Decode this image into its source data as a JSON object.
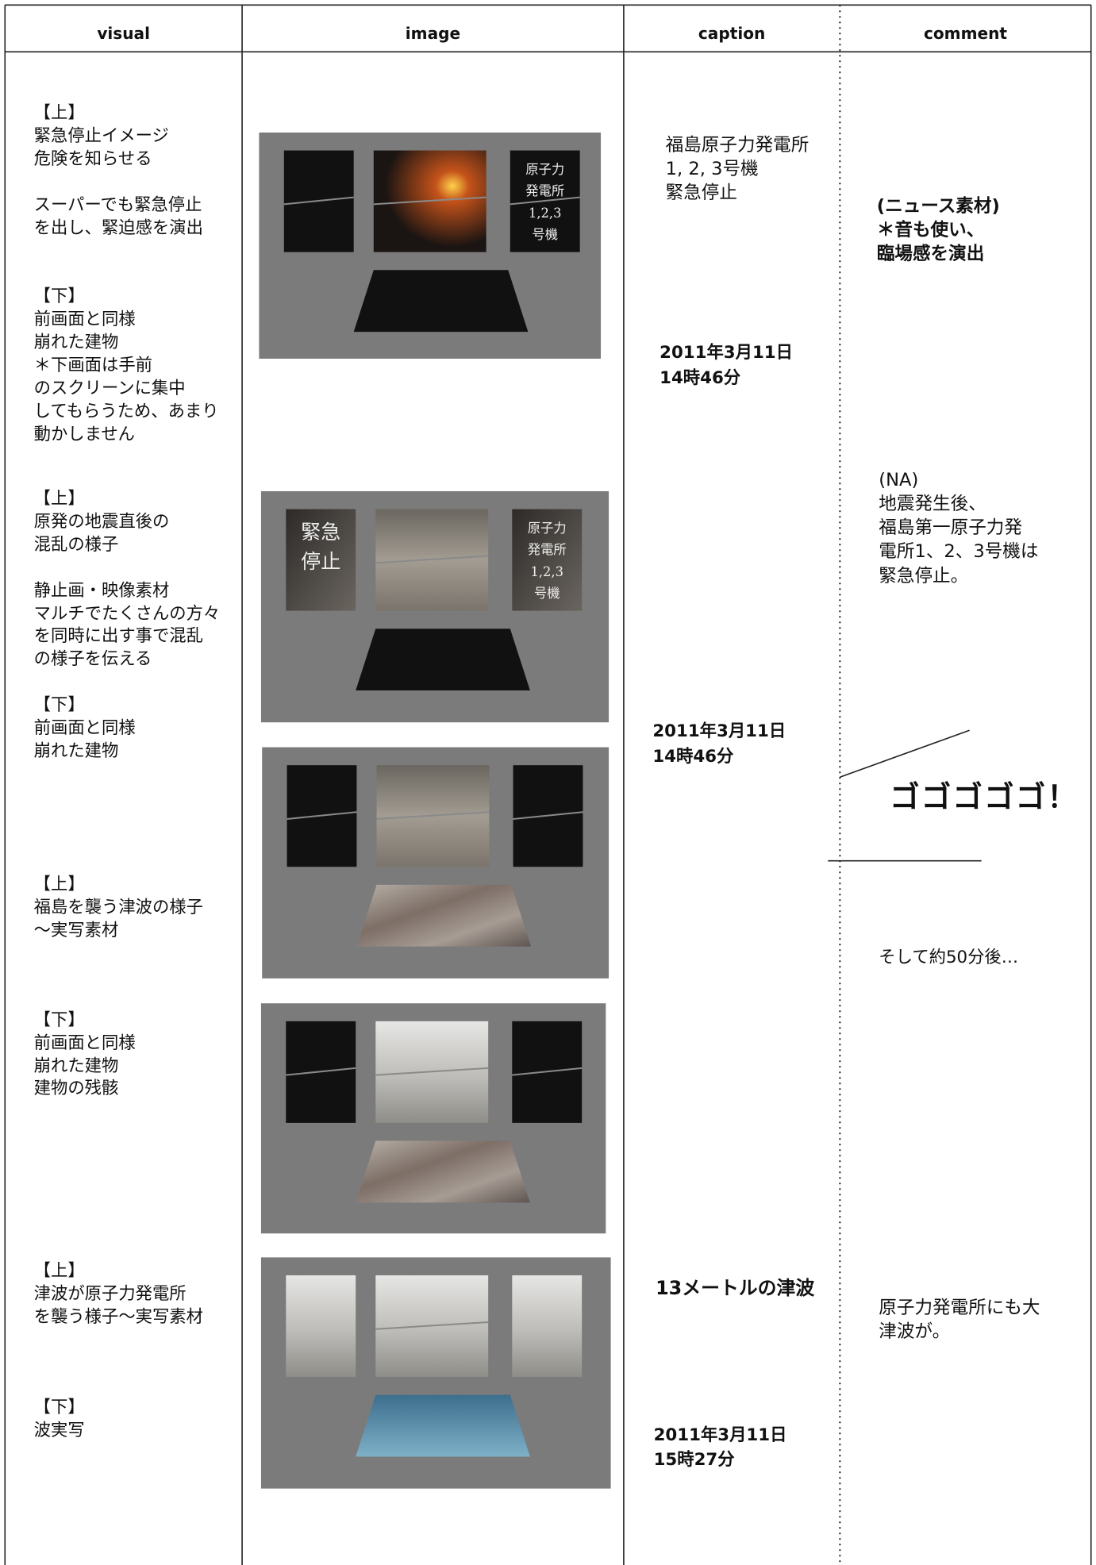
{
  "header": [
    "visual",
    "image",
    "caption",
    "comment"
  ],
  "visual": [
    "【上】\n緊急停止イメージ\n危険を知らせる\n\nスーパーでも緊急停止\nを出し、緊迫感を演出",
    "【下】\n前画面と同様\n崩れた建物\n＊下画面は手前\nのスクリーンに集中\nしてもらうため、あまり\n動かしません",
    "【上】\n原発の地震直後の\n混乱の様子\n\n静止画・映像素材\nマルチでたくさんの方々\nを同時に出す事で混乱\nの様子を伝える",
    "【下】\n前画面と同様\n崩れた建物",
    "【上】\n福島を襲う津波の様子\n～実写素材",
    "【下】\n前画面と同様\n崩れた建物\n建物の残骸",
    "【上】\n津波が原子力発電所\nを襲う様子～実写素材",
    "【下】\n波実写"
  ],
  "image_texts": [
    "原子力\n発電所\n1,2,3\n号機",
    "緊急\n停止",
    "原子力\n発電所\n1,2,3\n号機"
  ],
  "caption": [
    "福島原子力発電所\n1, 2, 3号機\n緊急停止",
    "2011年3月11日\n14時46分",
    "2011年3月11日\n14時46分",
    "13メートルの津波",
    "2011年3月11日\n15時27分"
  ],
  "comment": [
    "(ニュース素材)\n＊音も使い、\n臨場感を演出",
    "(NA)\n地震発生後、\n福島第一原子力発\n電所1、2、3号機は\n緊急停止。",
    "ゴゴゴゴゴ！",
    "そして約50分後…",
    "原子力発電所にも大\n津波が。"
  ]
}
